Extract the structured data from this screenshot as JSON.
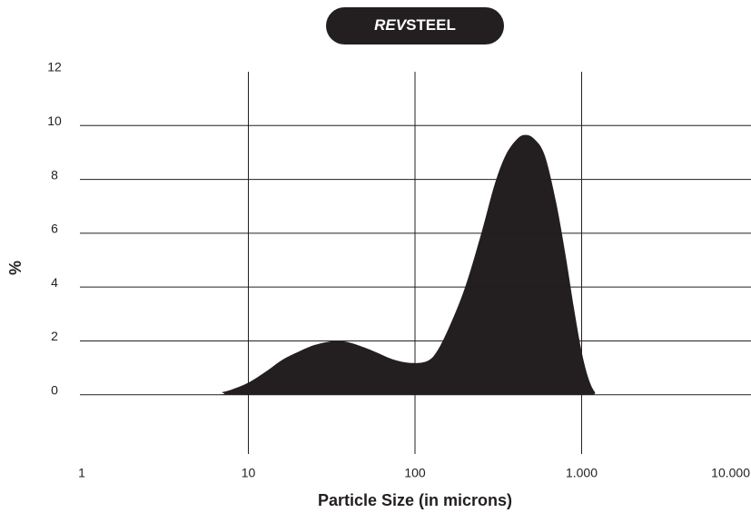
{
  "chart_data": {
    "type": "area",
    "title": [
      "REV",
      "STEEL"
    ],
    "xlabel": "Particle Size (in microns)",
    "ylabel": "%",
    "color": "#231f20",
    "xscale": "log",
    "grid": true,
    "xlim": [
      1,
      10000
    ],
    "xticks": [
      1,
      10,
      100,
      {
        "value": 1000,
        "label": "1.000"
      },
      {
        "value": 10000,
        "label": "10.000"
      }
    ],
    "ylim": [
      -2.2,
      12
    ],
    "yticks": [
      0,
      2,
      4,
      6,
      8,
      10,
      12
    ],
    "x": [
      1,
      6,
      7,
      8,
      10,
      13,
      16,
      20,
      25,
      33,
      40,
      50,
      60,
      75,
      95,
      118,
      135,
      160,
      200,
      250,
      300,
      350,
      410,
      460,
      520,
      600,
      700,
      800,
      900,
      1000,
      1100,
      1200,
      1300,
      3300
    ],
    "values": [
      0,
      0,
      0.1,
      0.2,
      0.45,
      0.9,
      1.3,
      1.6,
      1.85,
      2.0,
      1.95,
      1.75,
      1.55,
      1.3,
      1.18,
      1.25,
      1.6,
      2.5,
      4.0,
      6.0,
      7.8,
      8.9,
      9.5,
      9.65,
      9.5,
      8.9,
      7.2,
      5.2,
      3.2,
      1.6,
      0.6,
      0.1,
      0,
      0
    ]
  }
}
